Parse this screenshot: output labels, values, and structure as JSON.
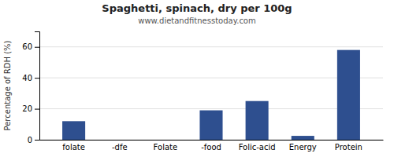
{
  "chart_data": {
    "type": "bar",
    "title": "Spaghetti, spinach, dry per 100g",
    "subtitle": "www.dietandfitnesstoday.com",
    "categories": [
      "folate",
      "-dfe",
      "Folate",
      "-food",
      "Folic-acid",
      "Energy",
      "Protein"
    ],
    "values": [
      12,
      0,
      0,
      19,
      25,
      2.5,
      58
    ],
    "color": "#2e4f8f",
    "ylabel": "Percentage of RDH (%)",
    "ylim": [
      0,
      70
    ],
    "yticks": [
      0,
      20,
      40,
      60
    ],
    "grid": true
  }
}
